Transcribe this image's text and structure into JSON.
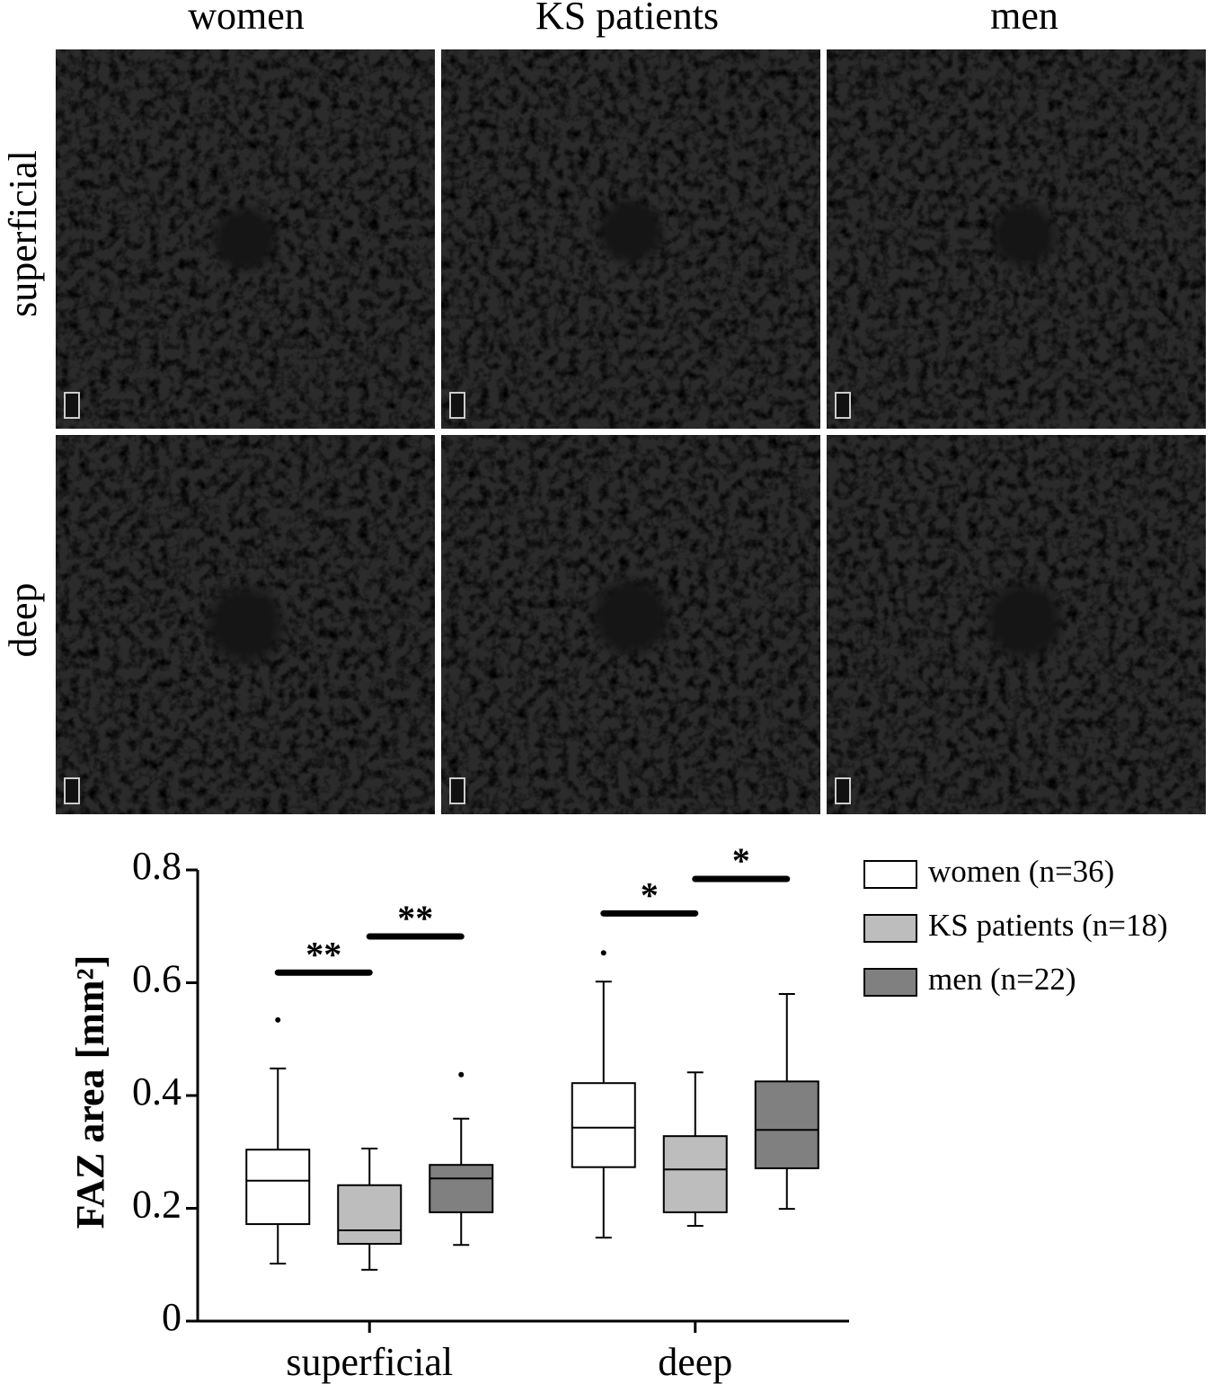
{
  "panels": {
    "columns": [
      "women",
      "KS patients",
      "men"
    ],
    "rows": [
      "superficial",
      "deep"
    ]
  },
  "chart_data": {
    "type": "box",
    "ylabel": "FAZ area [mm²]",
    "categories": [
      "superficial",
      "deep"
    ],
    "ylim": [
      0,
      0.8
    ],
    "yticks": [
      0,
      0.2,
      0.4,
      0.6,
      0.8
    ],
    "legend": "upper right",
    "series": [
      {
        "name": "women (n=36)",
        "color": "#ffffff",
        "boxes": [
          {
            "whislo": 0.102,
            "q1": 0.172,
            "med": 0.249,
            "q3": 0.304,
            "whishi": 0.448,
            "fliers": [
              0.534
            ]
          },
          {
            "whislo": 0.148,
            "q1": 0.273,
            "med": 0.343,
            "q3": 0.422,
            "whishi": 0.602,
            "fliers": [
              0.653
            ]
          }
        ]
      },
      {
        "name": "KS patients (n=18)",
        "color": "#bdbdbd",
        "boxes": [
          {
            "whislo": 0.091,
            "q1": 0.137,
            "med": 0.161,
            "q3": 0.241,
            "whishi": 0.306,
            "fliers": []
          },
          {
            "whislo": 0.169,
            "q1": 0.193,
            "med": 0.269,
            "q3": 0.328,
            "whishi": 0.441,
            "fliers": []
          }
        ]
      },
      {
        "name": "men (n=22)",
        "color": "#808080",
        "boxes": [
          {
            "whislo": 0.135,
            "q1": 0.193,
            "med": 0.253,
            "q3": 0.277,
            "whishi": 0.359,
            "fliers": [
              0.437
            ]
          },
          {
            "whislo": 0.199,
            "q1": 0.271,
            "med": 0.339,
            "q3": 0.425,
            "whishi": 0.58,
            "fliers": []
          }
        ]
      }
    ],
    "significance": [
      {
        "category": "superficial",
        "pair": [
          "women (n=36)",
          "KS patients (n=18)"
        ],
        "text": "**",
        "y": 0.618
      },
      {
        "category": "superficial",
        "pair": [
          "KS patients (n=18)",
          "men (n=22)"
        ],
        "text": "**",
        "y": 0.682
      },
      {
        "category": "deep",
        "pair": [
          "women (n=36)",
          "KS patients (n=18)"
        ],
        "text": "*",
        "y": 0.723
      },
      {
        "category": "deep",
        "pair": [
          "KS patients (n=18)",
          "men (n=22)"
        ],
        "text": "*",
        "y": 0.784
      }
    ]
  }
}
